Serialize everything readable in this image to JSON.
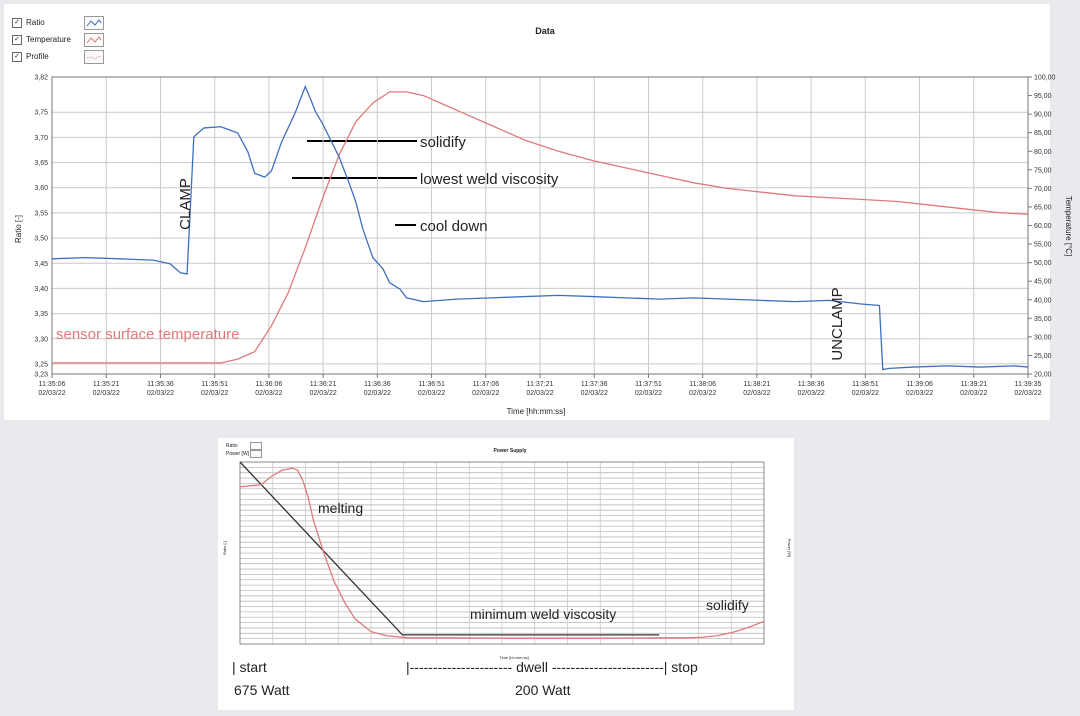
{
  "chart_data": [
    {
      "type": "line",
      "title": "Data",
      "xlabel": "Time [hh:mm:ss]",
      "ylabel": "Ratio [-]",
      "y2label": "Temperature [°C]",
      "ylim": [
        3.23,
        3.82
      ],
      "y2lim": [
        20,
        100
      ],
      "legend": {
        "placement": "top-left",
        "items": [
          "Ratio",
          "Temperature",
          "Profile"
        ]
      },
      "grid": true,
      "y_ticks": [
        "3,82",
        "3,75",
        "3,70",
        "3,65",
        "3,60",
        "3,55",
        "3,50",
        "3,45",
        "3,40",
        "3,35",
        "3,30",
        "3,25",
        "3,23"
      ],
      "y_tick_values": [
        3.82,
        3.75,
        3.7,
        3.65,
        3.6,
        3.55,
        3.5,
        3.45,
        3.4,
        3.35,
        3.3,
        3.25,
        3.23
      ],
      "y2_ticks": [
        "100,00",
        "95,00",
        "90,00",
        "85,00",
        "80,00",
        "75,00",
        "70,00",
        "65,00",
        "60,00",
        "55,00",
        "50,00",
        "45,00",
        "40,00",
        "35,00",
        "30,00",
        "25,00",
        "20,00"
      ],
      "y2_tick_values": [
        100,
        95,
        90,
        85,
        80,
        75,
        70,
        65,
        60,
        55,
        50,
        45,
        40,
        35,
        30,
        25,
        20
      ],
      "x_ticks": [
        "11:35:06",
        "11:35:21",
        "11:35:36",
        "11:35:51",
        "11:36:06",
        "11:36:21",
        "11:36:36",
        "11:36:51",
        "11:37:06",
        "11:37:21",
        "11:37:36",
        "11:37:51",
        "11:38:06",
        "11:38:21",
        "11:38:36",
        "11:38:51",
        "11:39:06",
        "11:39:21",
        "11:39:35"
      ],
      "x_tick_date": "02/03/22",
      "series": [
        {
          "name": "Ratio",
          "color": "#3e6fbf",
          "x_seconds": [
            0,
            10,
            20,
            30,
            35,
            38,
            40,
            42,
            45,
            50,
            55,
            58,
            60,
            63,
            65,
            68,
            72,
            75,
            77,
            78,
            80,
            85,
            88,
            90,
            92,
            95,
            98,
            100,
            103,
            105,
            110,
            115,
            120,
            130,
            140,
            150,
            160,
            170,
            180,
            190,
            200,
            210,
            220,
            230,
            240,
            245,
            246,
            248,
            255,
            265,
            275,
            285,
            289
          ],
          "values": [
            3.46,
            3.46,
            3.46,
            3.455,
            3.45,
            3.43,
            3.43,
            3.7,
            3.72,
            3.72,
            3.71,
            3.67,
            3.63,
            3.62,
            3.635,
            3.69,
            3.75,
            3.8,
            3.77,
            3.75,
            3.73,
            3.66,
            3.61,
            3.57,
            3.52,
            3.46,
            3.44,
            3.41,
            3.4,
            3.38,
            3.375,
            3.375,
            3.38,
            3.38,
            3.385,
            3.385,
            3.385,
            3.38,
            3.38,
            3.38,
            3.38,
            3.375,
            3.375,
            3.375,
            3.37,
            3.365,
            3.24,
            3.24,
            3.245,
            3.245,
            3.245,
            3.245,
            3.245
          ]
        },
        {
          "name": "Temperature",
          "color": "#e07a7a",
          "axis": "right",
          "x_seconds": [
            0,
            30,
            50,
            55,
            60,
            65,
            70,
            75,
            80,
            85,
            90,
            95,
            100,
            105,
            110,
            115,
            120,
            130,
            140,
            150,
            160,
            170,
            180,
            190,
            200,
            210,
            220,
            230,
            240,
            250,
            260,
            270,
            280,
            289
          ],
          "values": [
            23,
            23,
            23,
            24,
            26,
            33,
            42,
            54,
            67,
            79,
            88,
            93,
            96,
            96,
            95,
            93,
            91,
            87,
            83,
            80,
            77.5,
            75.5,
            73.5,
            71.5,
            70,
            69,
            68,
            67.5,
            67,
            66.5,
            65.5,
            64.5,
            63.5,
            63
          ]
        }
      ],
      "annotations": [
        "solidify",
        "lowest weld viscosity",
        "cool down",
        "CLAMP",
        "UNCLAMP",
        "sensor surface temperature"
      ]
    },
    {
      "type": "line",
      "title": "Power Supply",
      "xlabel": "Time [hh:mm:ss]",
      "ylabel": "Ratio [-]",
      "y2label": "Power [W]",
      "ylim": [
        4.0,
        8.4
      ],
      "y2lim": [
        175,
        675
      ],
      "legend": {
        "placement": "top-left",
        "items": [
          "Ratio",
          "Power [W]"
        ]
      },
      "grid": true,
      "series": [
        {
          "name": "Ratio",
          "color": "#e07a7a",
          "x": [
            0,
            4,
            6,
            8,
            10,
            11,
            12,
            13,
            14,
            16,
            18,
            20,
            22,
            25,
            28,
            32,
            40,
            50,
            60,
            70,
            80,
            85,
            88,
            91,
            94,
            97,
            100
          ],
          "values": [
            7.8,
            7.85,
            8.05,
            8.2,
            8.25,
            8.2,
            7.95,
            7.55,
            7.0,
            6.2,
            5.5,
            5.0,
            4.6,
            4.3,
            4.2,
            4.15,
            4.15,
            4.14,
            4.14,
            4.14,
            4.15,
            4.15,
            4.16,
            4.2,
            4.28,
            4.4,
            4.55
          ]
        },
        {
          "name": "Power [W]",
          "color": "#333333",
          "axis": "right",
          "x": [
            0,
            31,
            80
          ],
          "values": [
            675,
            200,
            200
          ]
        }
      ],
      "annotations": [
        "melting",
        "minimum weld viscosity",
        "solidify",
        "| start",
        "675 Watt",
        "|---------------------- dwell ------------------------| stop",
        "200 Watt"
      ]
    }
  ]
}
